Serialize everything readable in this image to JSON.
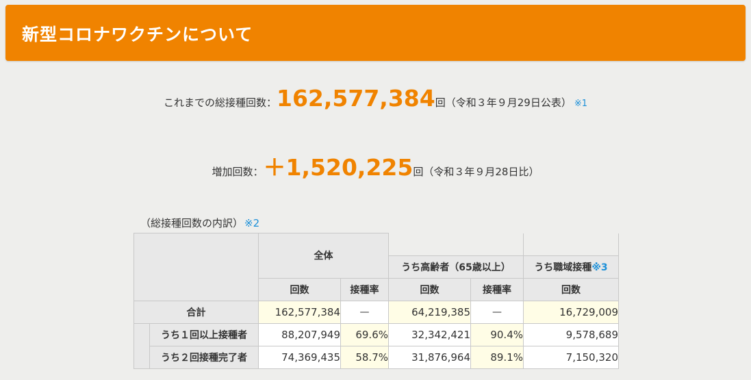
{
  "header": {
    "title": "新型コロナワクチンについて"
  },
  "total": {
    "label": "これまでの総接種回数：",
    "value": "162,577,384",
    "unit": "回",
    "note": "（令和３年９月29日公表）",
    "ref": "※1"
  },
  "increase": {
    "label": "増加回数：",
    "value": "＋1,520,225",
    "unit": "回",
    "note": "（令和３年９月28日比）"
  },
  "breakdown": {
    "caption": "（総接種回数の内訳）",
    "caption_ref": "※2",
    "group_all": "全体",
    "group_elderly": "うち高齢者（65歳以上）",
    "group_workplace": "うち職域接種",
    "group_workplace_ref": "※3",
    "col_count": "回数",
    "col_rate": "接種率",
    "rows": [
      {
        "label": "合計",
        "all_count": "162,577,384",
        "all_rate": "—",
        "elderly_count": "64,219,385",
        "elderly_rate": "—",
        "workplace_count": "16,729,009"
      },
      {
        "label": "うち１回以上接種者",
        "all_count": "88,207,949",
        "all_rate": "69.6%",
        "elderly_count": "32,342,421",
        "elderly_rate": "90.4%",
        "workplace_count": "9,578,689"
      },
      {
        "label": "うち２回接種完了者",
        "all_count": "74,369,435",
        "all_rate": "58.7%",
        "elderly_count": "31,876,964",
        "elderly_rate": "89.1%",
        "workplace_count": "7,150,320"
      }
    ]
  }
}
